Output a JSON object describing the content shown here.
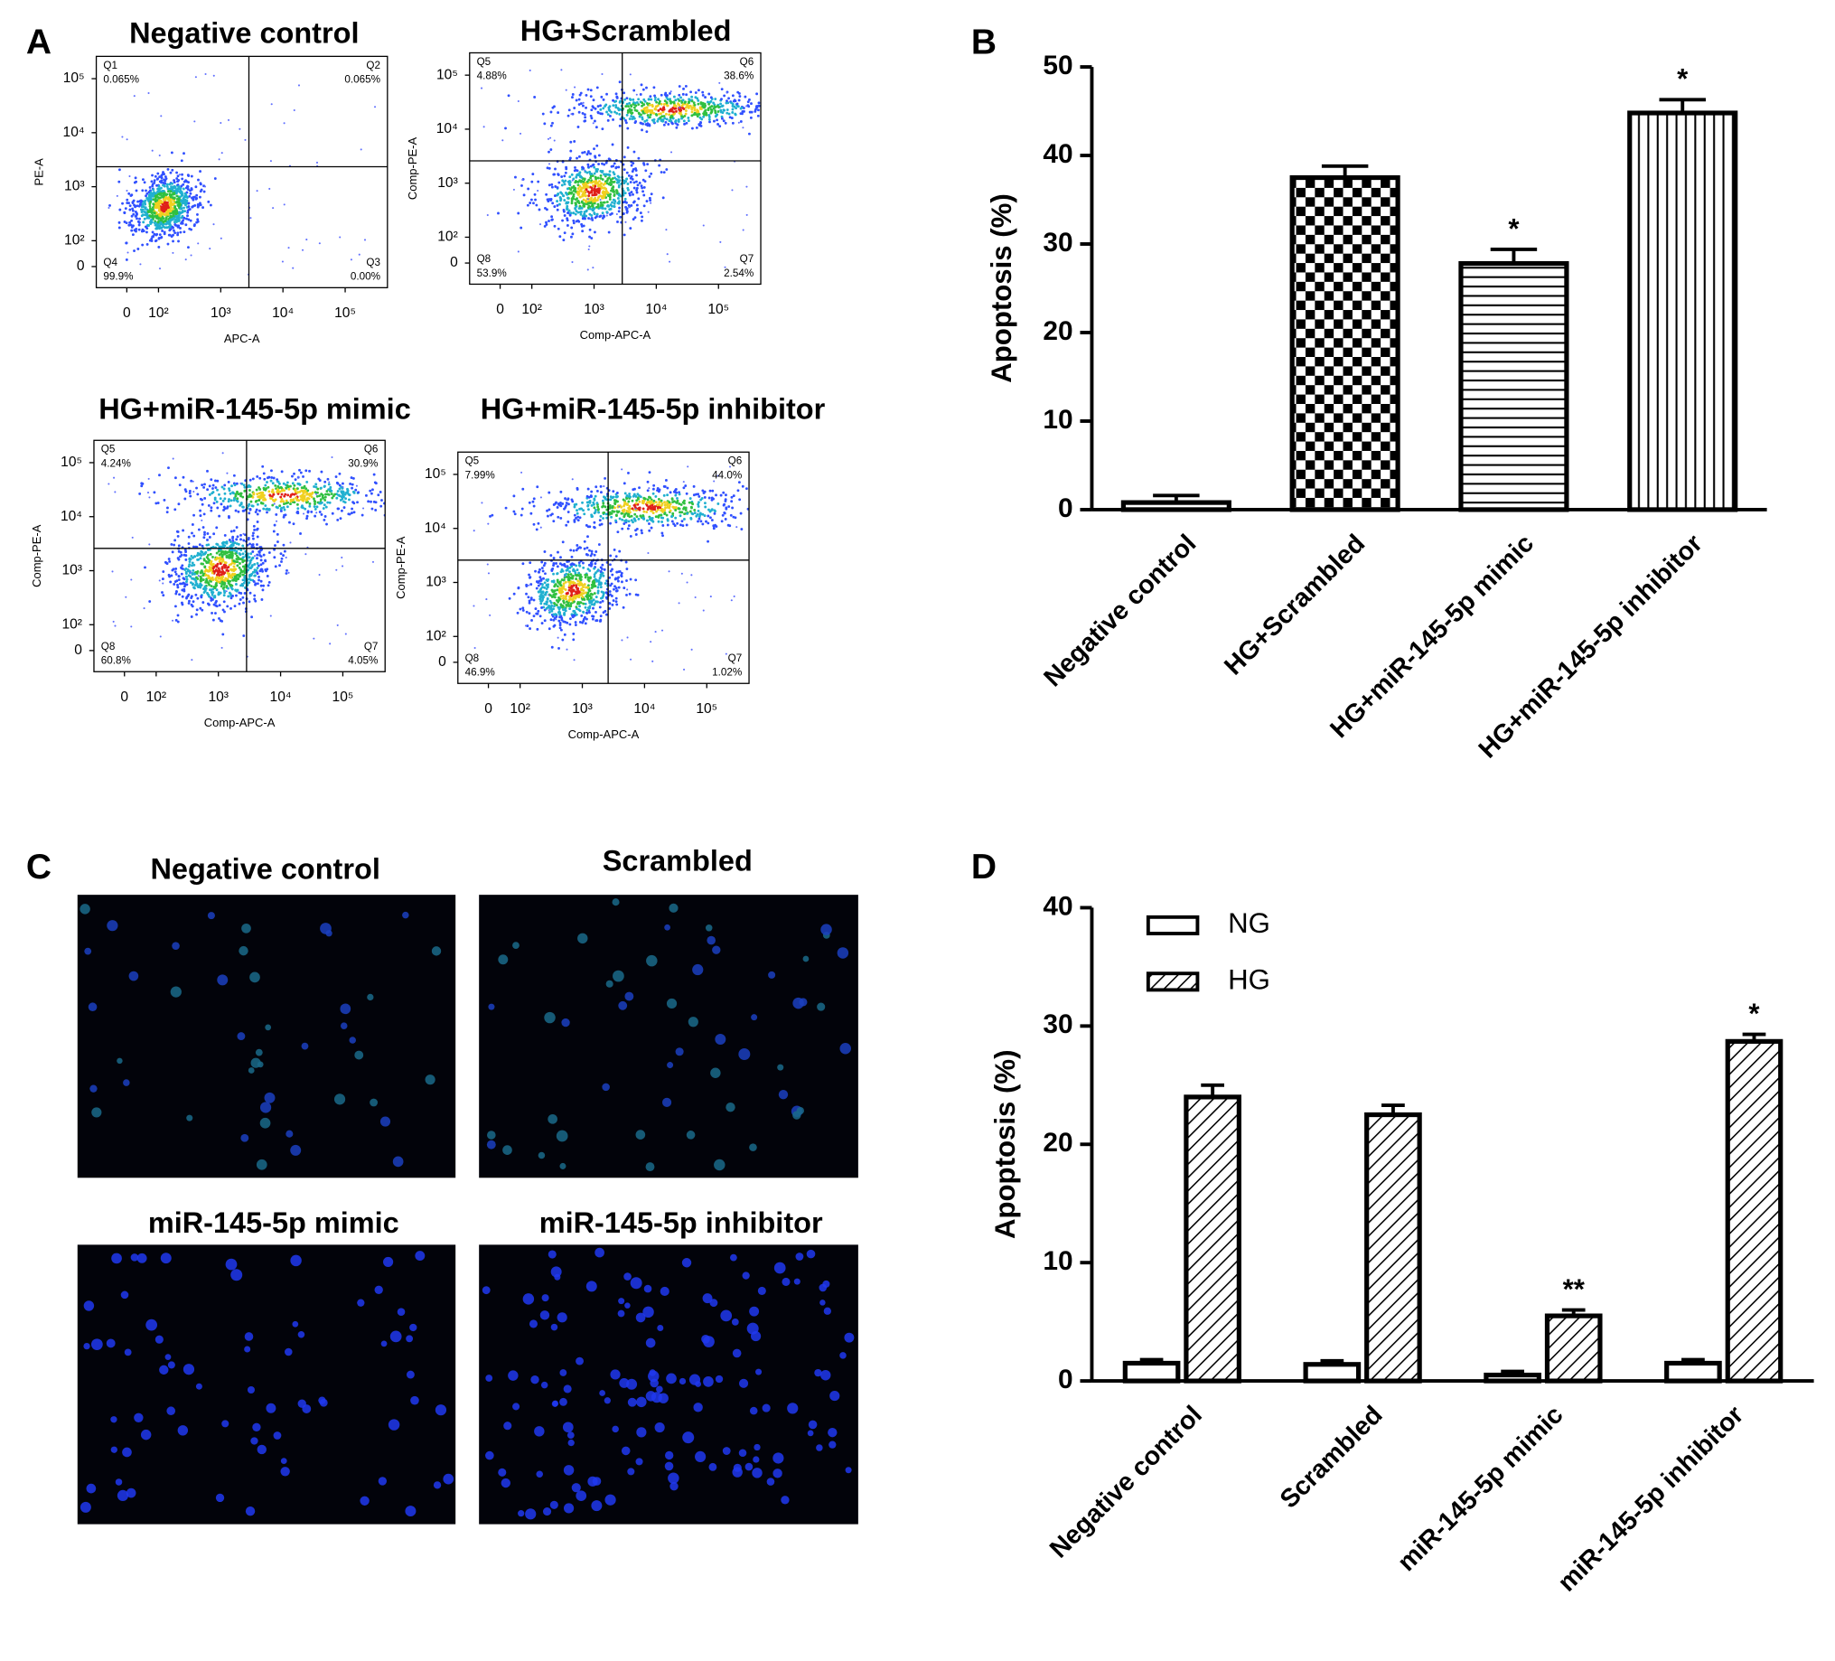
{
  "panel_labels": [
    "A",
    "B",
    "C",
    "D"
  ],
  "flow_ticks": [
    0,
    {
      "value": 100,
      "label": "10²"
    },
    {
      "value": 1000,
      "label": "10³"
    },
    {
      "value": 10000,
      "label": "10⁴"
    },
    {
      "value": 100000,
      "label": "10⁵"
    }
  ],
  "flow_plots": [
    {
      "title": "Negative control",
      "x_label": "APC-A",
      "y_label": "PE-A",
      "quadrants": [
        {
          "name": "Q1",
          "percent": "0.065%"
        },
        {
          "name": "Q2",
          "percent": "0.065%"
        },
        {
          "name": "Q3",
          "percent": "0.00%"
        },
        {
          "name": "Q4",
          "percent": "99.9%"
        }
      ]
    },
    {
      "title": "HG+Scrambled",
      "x_label": "Comp-APC-A",
      "y_label": "Comp-PE-A",
      "quadrants": [
        {
          "name": "Q5",
          "percent": "4.88%"
        },
        {
          "name": "Q6",
          "percent": "38.6%"
        },
        {
          "name": "Q7",
          "percent": "2.54%"
        },
        {
          "name": "Q8",
          "percent": "53.9%"
        }
      ]
    },
    {
      "title": "HG+miR-145-5p mimic",
      "x_label": "Comp-APC-A",
      "y_label": "Comp-PE-A",
      "quadrants": [
        {
          "name": "Q5",
          "percent": "4.24%"
        },
        {
          "name": "Q6",
          "percent": "30.9%"
        },
        {
          "name": "Q7",
          "percent": "4.05%"
        },
        {
          "name": "Q8",
          "percent": "60.8%"
        }
      ]
    },
    {
      "title": "HG+miR-145-5p inhibitor",
      "x_label": "Comp-APC-A",
      "y_label": "Comp-PE-A",
      "quadrants": [
        {
          "name": "Q5",
          "percent": "7.99%"
        },
        {
          "name": "Q6",
          "percent": "44.0%"
        },
        {
          "name": "Q7",
          "percent": "1.02%"
        },
        {
          "name": "Q8",
          "percent": "46.9%"
        }
      ]
    }
  ],
  "images": [
    {
      "title": "Negative control"
    },
    {
      "title": "Scrambled"
    },
    {
      "title": "miR-145-5p mimic"
    },
    {
      "title": "miR-145-5p inhibitor"
    }
  ],
  "chart_data": [
    {
      "type": "bar",
      "y_label": "Apoptosis (%)",
      "categories": [
        "Negative control",
        "HG+Scrambled",
        "HG+miR-145-5p mimic",
        "HG+miR-145-5p inhibitor"
      ],
      "values": [
        0.8,
        37.5,
        27.8,
        44.8
      ],
      "errors": [
        0.8,
        1.3,
        1.6,
        1.5
      ],
      "annotations": [
        null,
        null,
        "*",
        "*"
      ],
      "patterns": [
        "none",
        "checker",
        "horizontal",
        "vertical"
      ],
      "color": "#000000",
      "ylim": [
        0,
        50
      ],
      "yticks": [
        0,
        10,
        20,
        30,
        40,
        50
      ],
      "grid": false
    },
    {
      "type": "bar",
      "y_label": "Apoptosis (%)",
      "categories": [
        "Negative control",
        "Scrambled",
        "miR-145-5p mimic",
        "miR-145-5p inhibitor"
      ],
      "series": [
        {
          "name": "NG",
          "color": "#000000",
          "pattern": "none",
          "values": [
            1.5,
            1.4,
            0.5,
            1.5
          ],
          "errors": [
            0.3,
            0.3,
            0.3,
            0.3
          ],
          "annotations": [
            null,
            null,
            null,
            null
          ]
        },
        {
          "name": "HG",
          "color": "#000000",
          "pattern": "diagonal",
          "values": [
            24.0,
            22.5,
            5.5,
            28.7
          ],
          "errors": [
            1.0,
            0.8,
            0.5,
            0.6
          ],
          "annotations": [
            null,
            null,
            "**",
            "*"
          ]
        }
      ],
      "ylim": [
        0,
        40
      ],
      "yticks": [
        0,
        10,
        20,
        30,
        40
      ],
      "grid": false,
      "legend": "top-left"
    }
  ]
}
